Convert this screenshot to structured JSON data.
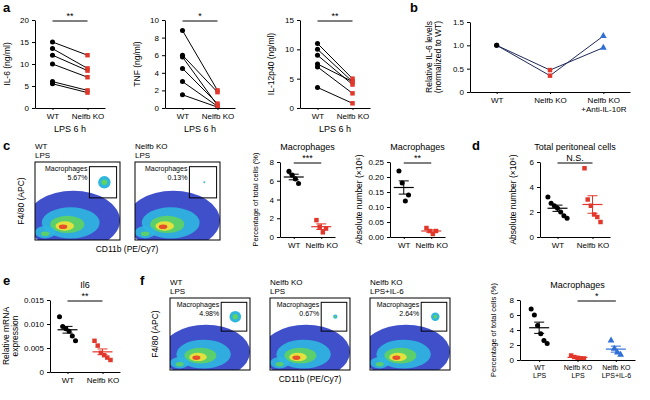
{
  "chart_data": [
    {
      "panel": "a",
      "type": "paired",
      "y_label": "IL-6 (ng/ml)",
      "x_label": "LPS 6 h",
      "categories": [
        [
          "WT"
        ],
        [
          "Nelfb KO"
        ]
      ],
      "colors": [
        "#000000",
        "#e2372b"
      ],
      "markers": [
        "circle",
        "square"
      ],
      "series": [
        {
          "color": "#000000",
          "values": [
            15,
            12
          ]
        },
        {
          "color": "#000000",
          "values": [
            13.5,
            9
          ]
        },
        {
          "color": "#000000",
          "values": [
            12,
            8.5
          ]
        },
        {
          "color": "#000000",
          "values": [
            10,
            7
          ]
        },
        {
          "color": "#000000",
          "values": [
            6,
            4
          ]
        },
        {
          "color": "#000000",
          "values": [
            5.5,
            3.5
          ]
        }
      ],
      "ylim": [
        0,
        20
      ],
      "yticks": [
        0,
        5,
        10,
        15,
        20
      ],
      "significance": {
        "text": "**",
        "categories": [
          0,
          1
        ]
      }
    },
    {
      "type": "paired",
      "y_label": "TNF (ng/ml)",
      "x_label": "LPS 6 h",
      "categories": [
        [
          "WT"
        ],
        [
          "Nelfb KO"
        ]
      ],
      "colors": [
        "#000000",
        "#e2372b"
      ],
      "markers": [
        "circle",
        "square"
      ],
      "series": [
        {
          "color": "#000000",
          "values": [
            8.8,
            2
          ]
        },
        {
          "color": "#000000",
          "values": [
            6,
            1.8
          ]
        },
        {
          "color": "#000000",
          "values": [
            5.8,
            0.3
          ]
        },
        {
          "color": "#000000",
          "values": [
            4.5,
            0.5
          ]
        },
        {
          "color": "#000000",
          "values": [
            3,
            0.2
          ]
        },
        {
          "color": "#000000",
          "values": [
            1.5,
            0.1
          ]
        }
      ],
      "ylim": [
        0,
        10
      ],
      "yticks": [
        0,
        2,
        4,
        6,
        8,
        10
      ],
      "significance": {
        "text": "*",
        "categories": [
          0,
          1
        ]
      }
    },
    {
      "type": "paired",
      "y_label": "IL-12p40 (ng/ml)",
      "x_label": "LPS 6 h",
      "categories": [
        [
          "WT"
        ],
        [
          "Nelfb KO"
        ]
      ],
      "colors": [
        "#000000",
        "#e2372b"
      ],
      "markers": [
        "circle",
        "square"
      ],
      "series": [
        {
          "color": "#000000",
          "values": [
            11,
            5
          ]
        },
        {
          "color": "#000000",
          "values": [
            10,
            4.5
          ]
        },
        {
          "color": "#000000",
          "values": [
            9,
            4
          ]
        },
        {
          "color": "#000000",
          "values": [
            7.5,
            4.5
          ]
        },
        {
          "color": "#000000",
          "values": [
            7,
            2.5
          ]
        },
        {
          "color": "#000000",
          "values": [
            3.5,
            0.8
          ]
        }
      ],
      "ylim": [
        0,
        15
      ],
      "yticks": [
        0,
        5,
        10,
        15
      ],
      "significance": {
        "text": "**",
        "categories": [
          0,
          1
        ]
      }
    },
    {
      "panel": "b",
      "type": "paired",
      "y_label": [
        "Relative IL-6 levels",
        "(normalized to WT)"
      ],
      "categories": [
        [
          "WT"
        ],
        [
          "Nelfb KO"
        ],
        [
          "Nelfb KO",
          "+Anti-IL-10R"
        ]
      ],
      "colors": [
        "#000000",
        "#e2372b",
        "#2f6fd6"
      ],
      "markers": [
        "circle",
        "square",
        "triangle"
      ],
      "series": [
        {
          "color": "#1f2a5a",
          "values": [
            1,
            0.35,
            1.2
          ]
        },
        {
          "color": "#1f2a5a",
          "values": [
            1,
            0.47,
            0.95
          ]
        }
      ],
      "ylim": [
        0,
        1.5
      ],
      "yticks": [
        0,
        0.5,
        {
          "value": 1,
          "label": "1.0"
        },
        1.5
      ]
    },
    {
      "panel": "c",
      "type": "density",
      "title": [
        "WT",
        "LPS"
      ],
      "gate": "Macrophages",
      "values": [
        5.67
      ],
      "value_labels": [
        "5.67%"
      ],
      "y_label": "F4/80 (APC)",
      "x_label": "CD11b (PE/Cy7)",
      "tick_labels": false
    },
    {
      "type": "density",
      "title": [
        "Nelfb KO",
        "LPS"
      ],
      "gate": "Macrophages",
      "values": [
        0.13
      ],
      "value_labels": [
        "0.13%"
      ],
      "tick_labels": false
    },
    {
      "type": "dot",
      "title": "Macrophages",
      "y_label": "Percentage of total cells (%)",
      "categories": [
        [
          "WT"
        ],
        [
          "Nelfb KO"
        ]
      ],
      "colors": [
        "#000000",
        "#e2372b"
      ],
      "markers": [
        "circle",
        "square"
      ],
      "values": [
        [
          7.0,
          6.6,
          6.2,
          5.7
        ],
        [
          1.8,
          1.1,
          0.5,
          0.9
        ]
      ],
      "means": [
        6.4,
        1.1
      ],
      "errors": [
        0.3,
        0.3
      ],
      "ylim": [
        0,
        8
      ],
      "yticks": [
        0,
        2,
        4,
        6,
        8
      ],
      "significance": {
        "text": "***",
        "categories": [
          0,
          1
        ]
      }
    },
    {
      "type": "dot",
      "title": "Macrophages",
      "y_label": "Absolute number (×10⁶)",
      "categories": [
        [
          "WT"
        ],
        [
          "Nelfb KO"
        ]
      ],
      "colors": [
        "#000000",
        "#e2372b"
      ],
      "markers": [
        "circle",
        "square"
      ],
      "values": [
        [
          0.22,
          0.18,
          0.12,
          0.14
        ],
        [
          0.03,
          0.02,
          0.01,
          0.02
        ]
      ],
      "means": [
        0.165,
        0.02
      ],
      "errors": [
        0.022,
        0.004
      ],
      "ylim": [
        0,
        0.25
      ],
      "yticks": [
        {
          "value": 0,
          "label": "0.00"
        },
        0.05,
        {
          "value": 0.1,
          "label": "0.10"
        },
        0.15,
        {
          "value": 0.2,
          "label": "0.20"
        },
        0.25
      ],
      "significance": {
        "text": "**",
        "categories": [
          0,
          1
        ]
      }
    },
    {
      "panel": "d",
      "type": "dot",
      "title": "Total peritoneal cells",
      "y_label": "Absolute number (×10⁶)",
      "categories": [
        [
          "WT"
        ],
        [
          "Nelfb KO"
        ]
      ],
      "colors": [
        "#000000",
        "#e2372b"
      ],
      "markers": [
        "circle",
        "square"
      ],
      "values": [
        [
          3.2,
          2.7,
          2.5,
          2.3,
          2.0,
          1.7,
          1.5
        ],
        [
          5.5,
          3.0,
          2.5,
          1.8,
          1.6,
          1.2
        ]
      ],
      "means": [
        2.3,
        2.6
      ],
      "errors": [
        0.25,
        0.7
      ],
      "ylim": [
        0,
        6
      ],
      "yticks": [
        0,
        2,
        4,
        6
      ],
      "significance": {
        "text": "N.S.",
        "categories": [
          0,
          1
        ]
      }
    },
    {
      "panel": "e",
      "type": "dot",
      "title": "Il6",
      "y_label": [
        "Relative mRNA",
        "expression"
      ],
      "categories": [
        [
          "WT"
        ],
        [
          "Nelfb KO"
        ]
      ],
      "colors": [
        "#000000",
        "#e2372b"
      ],
      "markers": [
        "circle",
        "square"
      ],
      "values": [
        [
          0.0115,
          0.0095,
          0.009,
          0.0085,
          0.0075,
          0.0065
        ],
        [
          0.0065,
          0.0055,
          0.004,
          0.0035,
          0.003,
          0.0025
        ]
      ],
      "means": [
        0.0088,
        0.0042
      ],
      "errors": [
        0.0007,
        0.0006
      ],
      "ylim": [
        0,
        0.015
      ],
      "yticks": [
        0,
        0.005,
        {
          "value": 0.01,
          "label": "0.010"
        },
        0.015
      ],
      "significance": {
        "text": "**",
        "categories": [
          0,
          1
        ]
      }
    },
    {
      "panel": "f",
      "type": "density",
      "title": [
        "WT",
        "LPS"
      ],
      "gate": "Macrophages",
      "values": [
        4.98
      ],
      "value_labels": [
        "4.98%"
      ],
      "y_label": "F4/80 (APC)",
      "x_label": "CD11b (PE/Cy7)",
      "tick_labels": false
    },
    {
      "type": "density",
      "title": [
        "Nelfb KO",
        "LPS"
      ],
      "gate": "Macrophages",
      "values": [
        0.67
      ],
      "value_labels": [
        "0.67%"
      ],
      "tick_labels": false
    },
    {
      "type": "density",
      "title": [
        "Nelfb KO",
        "LPS+IL-6"
      ],
      "gate": "Macrophages",
      "values": [
        2.64
      ],
      "value_labels": [
        "2.64%"
      ],
      "tick_labels": false
    },
    {
      "type": "dot",
      "title": "Macrophages",
      "y_label": "Percentage of total cells (%)",
      "categories": [
        [
          "WT",
          "LPS"
        ],
        [
          "Nelfb KO",
          "LPS"
        ],
        [
          "Nelfb KO",
          "LPS+IL-6"
        ]
      ],
      "colors": [
        "#000000",
        "#e2372b",
        "#2f6fd6"
      ],
      "markers": [
        "circle",
        "square",
        "triangle"
      ],
      "values": [
        [
          6.8,
          6.0,
          4.6,
          3.5,
          2.6,
          2.2
        ],
        [
          0.6,
          0.4,
          0.3,
          0.2,
          0.2
        ],
        [
          2.6,
          1.5,
          1.0,
          0.7
        ]
      ],
      "means": [
        4.3,
        0.35,
        1.45
      ],
      "errors": [
        0.75,
        0.08,
        0.4
      ],
      "ylim": [
        0,
        8
      ],
      "yticks": [
        0,
        2,
        4,
        6,
        8
      ],
      "significance": {
        "text": "*",
        "categories": [
          1,
          2
        ]
      }
    }
  ]
}
